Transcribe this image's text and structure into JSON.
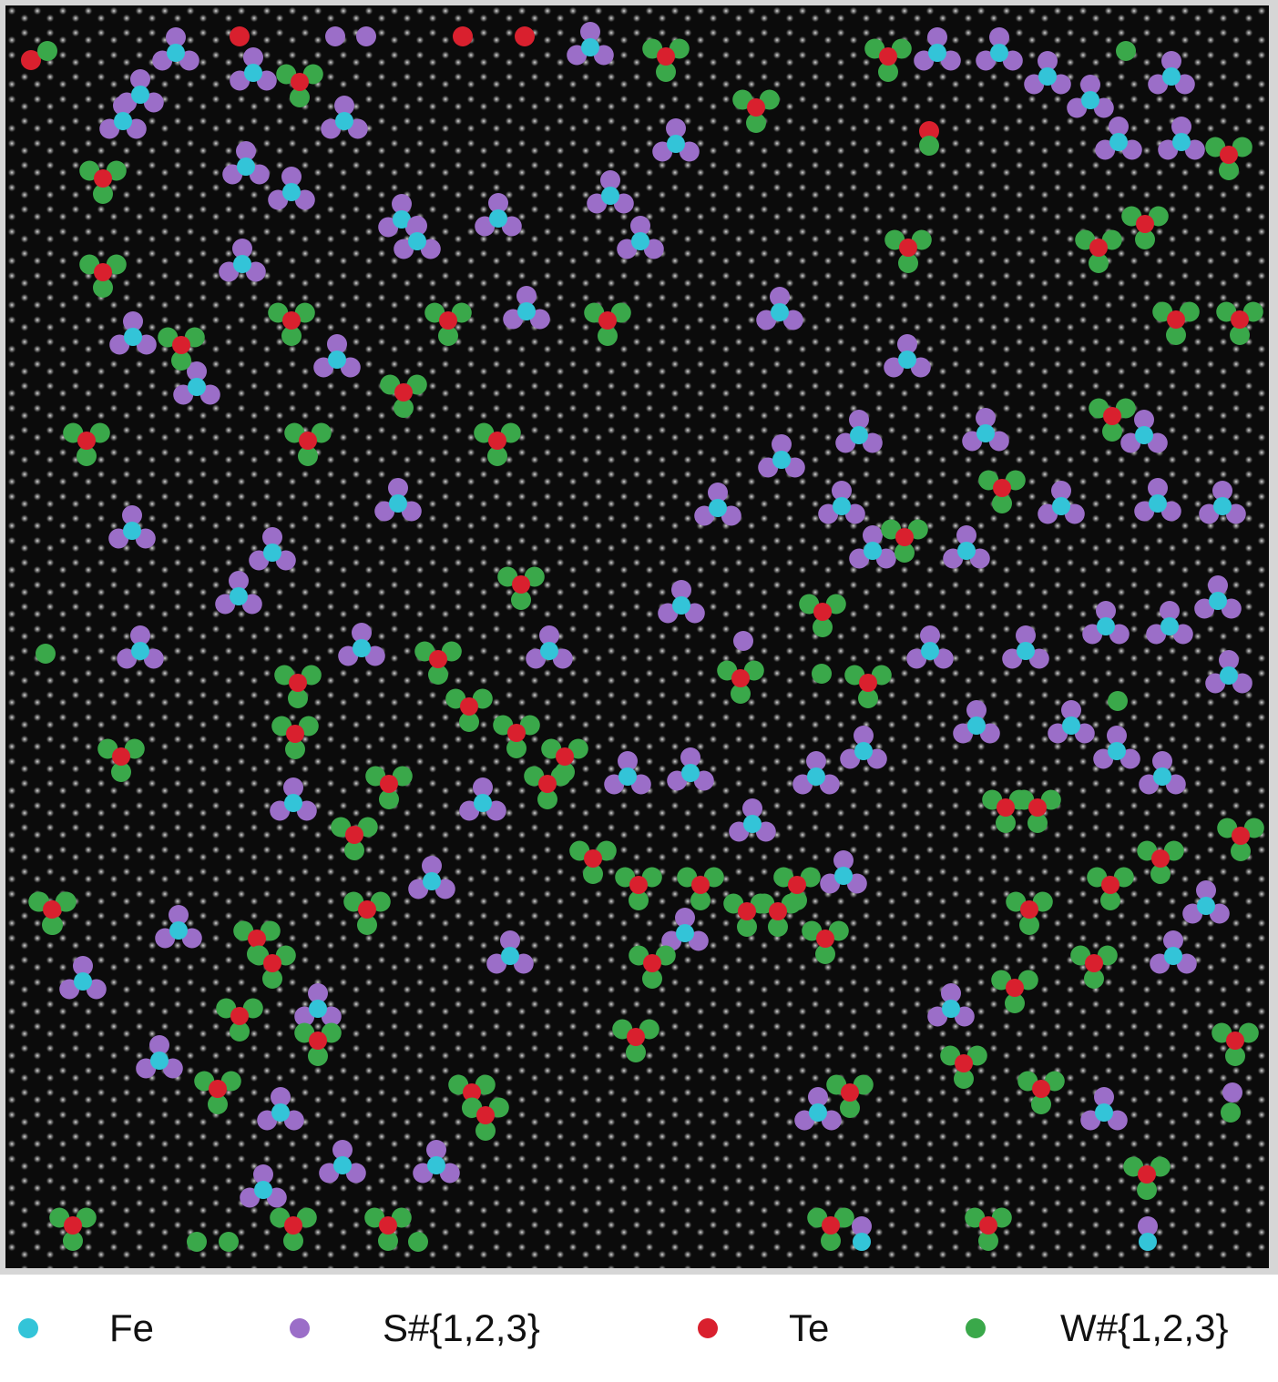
{
  "image": {
    "description_kind": "annotated-stem-micrograph",
    "background_color": "#0b0b0b",
    "lattice_color": "#bdbdbd"
  },
  "colors": {
    "fe": "#33c4d8",
    "s": "#9b6ec8",
    "te": "#d9202e",
    "w": "#3aa84a"
  },
  "legend": [
    {
      "key": "fe",
      "label": "Fe",
      "color": "#33c4d8"
    },
    {
      "key": "s",
      "label": "S#{1,2,3}",
      "color": "#9b6ec8"
    },
    {
      "key": "te",
      "label": "Te",
      "color": "#d9202e"
    },
    {
      "key": "w",
      "label": "W#{1,2,3}",
      "color": "#3aa84a"
    }
  ]
}
